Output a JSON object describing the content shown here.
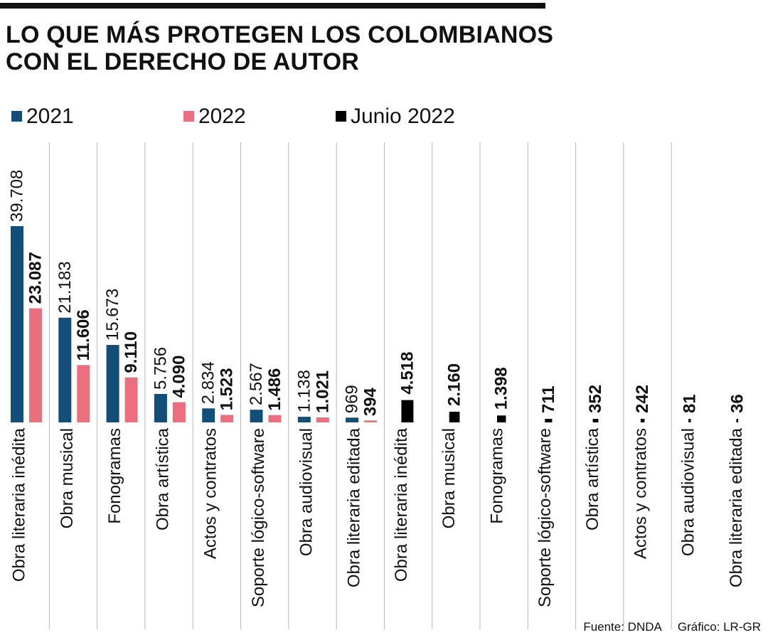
{
  "title_lines": [
    "LO QUE MÁS PROTEGEN LOS COLOMBIANOS",
    "CON EL DERECHO DE AUTOR"
  ],
  "legend": [
    {
      "label": "2021",
      "color": "#124e78"
    },
    {
      "label": "2022",
      "color": "#ec6f80"
    },
    {
      "label": "Junio 2022",
      "color": "#000000"
    }
  ],
  "footer": {
    "source": "Fuente: DNDA",
    "credit": "Gráfico: LR-GR"
  },
  "chart_data": {
    "type": "bar",
    "groups": [
      {
        "series": [
          "2021",
          "2022"
        ],
        "categories": [
          "Obra literaria inédita",
          "Obra musical",
          "Fonogramas",
          "Obra artística",
          "Actos y contratos",
          "Soporte lógico-software",
          "Obra audiovisual",
          "Obra literaria editada"
        ],
        "values_2021": [
          39708,
          21183,
          15673,
          5756,
          2834,
          2567,
          1138,
          969
        ],
        "labels_2021": [
          "39.708",
          "21.183",
          "15.673",
          "5.756",
          "2.834",
          "2.567",
          "1.138",
          "969"
        ],
        "values_2022": [
          23087,
          11606,
          9110,
          4090,
          1523,
          1486,
          1021,
          394
        ],
        "labels_2022": [
          "23.087",
          "11.606",
          "9.110",
          "4.090",
          "1.523",
          "1.486",
          "1.021",
          "394"
        ]
      },
      {
        "series": [
          "Junio 2022"
        ],
        "categories": [
          "Obra literaria inédita",
          "Obra musical",
          "Fonogramas",
          "Soporte lógico-software",
          "Obra artística",
          "Actos y contratos",
          "Obra audiovisual",
          "Obra literaria editada"
        ],
        "values": [
          4518,
          2160,
          1398,
          711,
          352,
          242,
          81,
          36
        ],
        "labels": [
          "4.518",
          "2.160",
          "1.398",
          "711",
          "352",
          "242",
          "81",
          "36"
        ]
      }
    ],
    "colors": {
      "2021": "#124e78",
      "2022": "#ec6f80",
      "Junio 2022": "#000000"
    },
    "grid": true,
    "legend_position": "top-left"
  }
}
